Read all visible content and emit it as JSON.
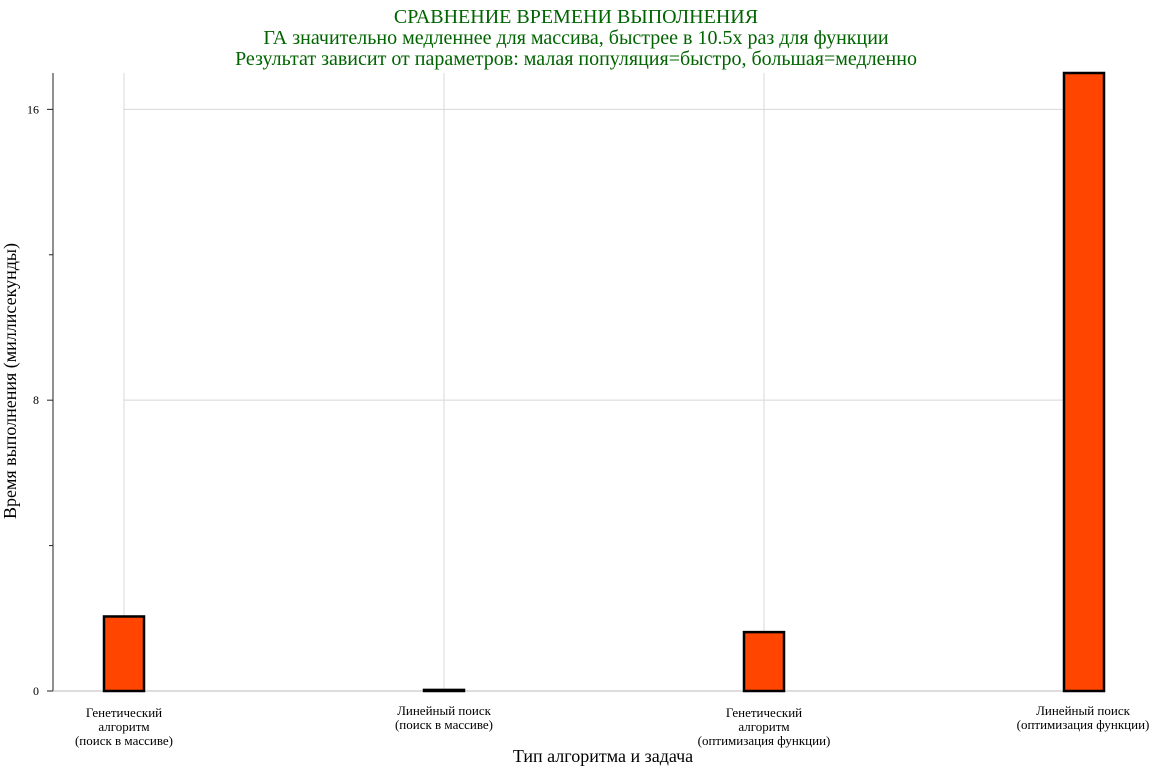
{
  "chart_data": {
    "type": "bar",
    "title": "СРАВНЕНИЕ ВРЕМЕНИ ВЫПОЛНЕНИЯ",
    "subtitle": [
      "ГА значительно медленнее для массива, быстрее в 10.5x раз для функции",
      "Результат зависит от параметров: малая популяция=быстро, большая=медленно"
    ],
    "xlabel": "Тип алгоритма и задача",
    "ylabel": "Время выполнения (миллисекунды)",
    "categories": [
      [
        "Генетический",
        "алгоритм",
        "(поиск в массиве)"
      ],
      [
        "Линейный поиск",
        "(поиск в массиве)"
      ],
      [
        "Генетический",
        "алгоритм",
        "(оптимизация функции)"
      ],
      [
        "Линейный поиск",
        "(оптимизация функции)"
      ]
    ],
    "values": [
      2.05,
      0.03,
      1.62,
      17.0
    ],
    "ylim": [
      0,
      17
    ],
    "yticks": [
      0,
      8,
      16
    ],
    "yticks_minor": [
      4,
      12
    ],
    "grid": true,
    "legend": "none",
    "colors": {
      "bar_fill": "#FF4500",
      "bar_edge": "#000000",
      "title": "#006400"
    }
  }
}
